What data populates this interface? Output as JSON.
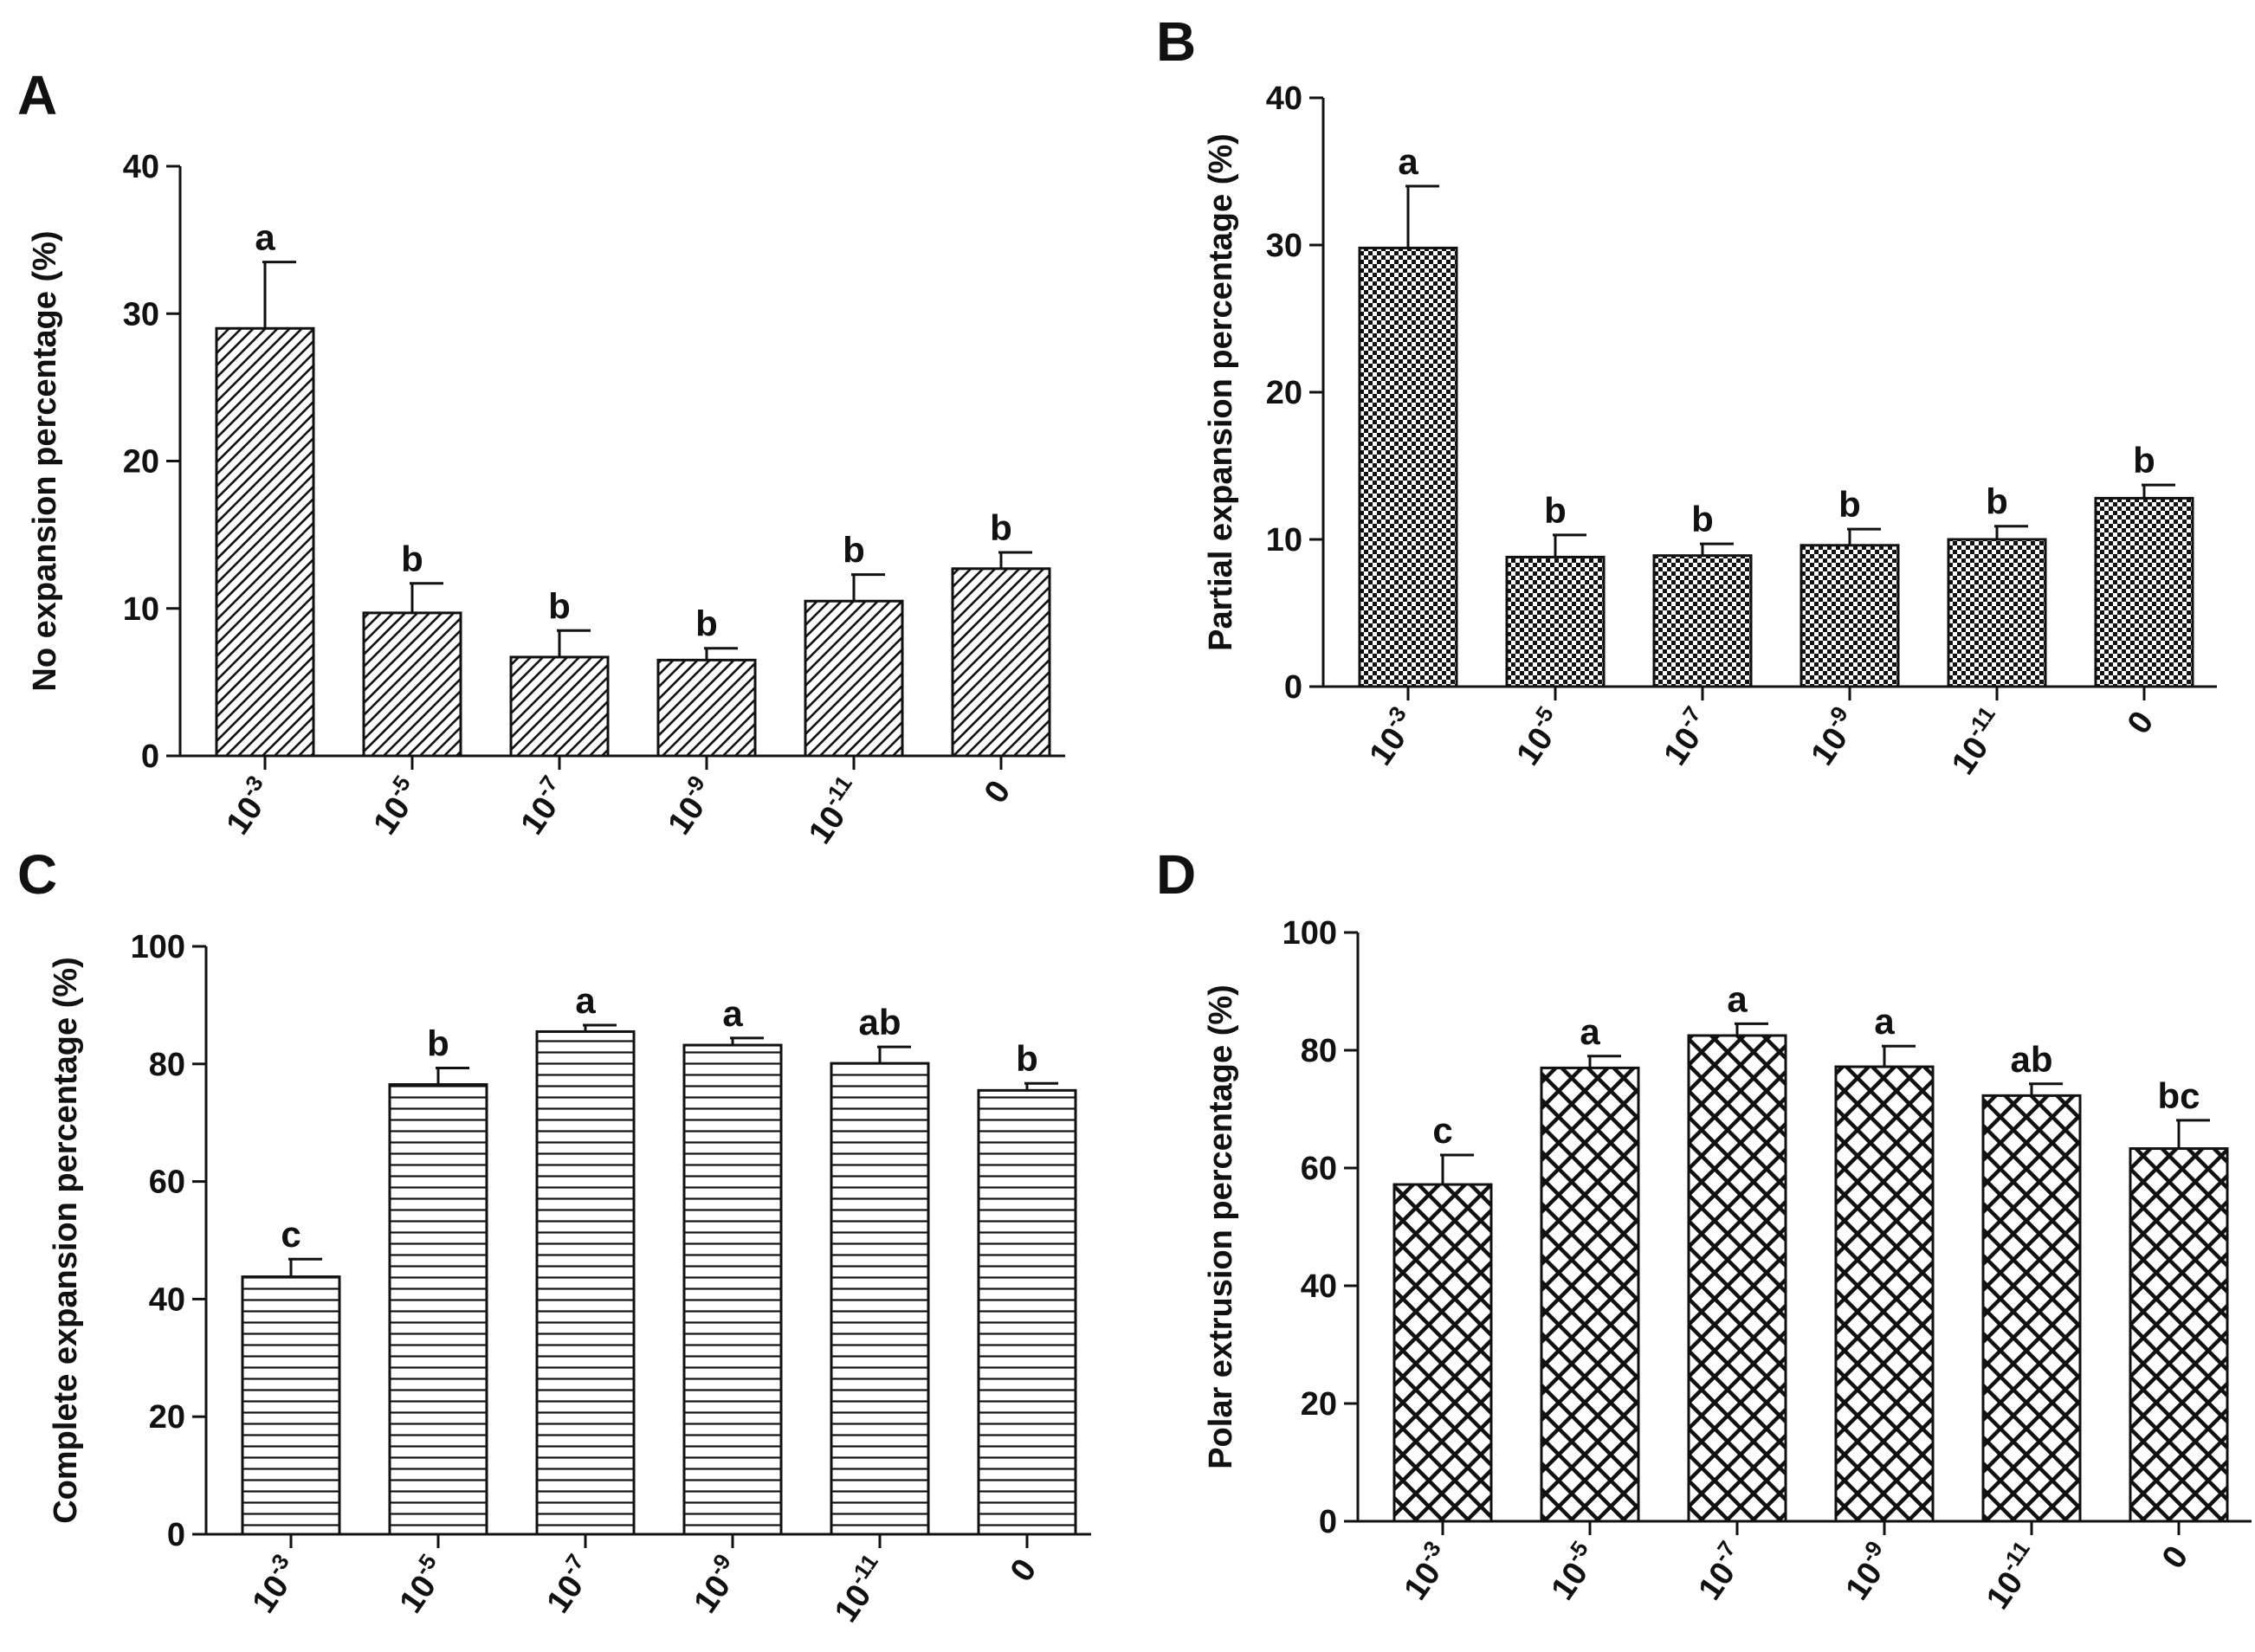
{
  "chart_data": [
    {
      "panel": "A",
      "type": "bar",
      "ylabel": "No expansion percentage (%)",
      "ylim": [
        0,
        40
      ],
      "yticks": [
        0,
        10,
        20,
        30,
        40
      ],
      "categories": [
        {
          "base": "10",
          "exp": "-3"
        },
        {
          "base": "10",
          "exp": "-5"
        },
        {
          "base": "10",
          "exp": "-7"
        },
        {
          "base": "10",
          "exp": "-9"
        },
        {
          "base": "10",
          "exp": "-11"
        },
        {
          "base": "0",
          "exp": ""
        }
      ],
      "values": [
        29.0,
        9.7,
        6.7,
        6.5,
        10.5,
        12.7
      ],
      "errors": [
        4.5,
        2.0,
        1.8,
        0.8,
        1.8,
        1.1
      ],
      "significance": [
        "a",
        "b",
        "b",
        "b",
        "b",
        "b"
      ],
      "pattern": "diagonal"
    },
    {
      "panel": "B",
      "type": "bar",
      "ylabel": "Partial expansion percentage (%)",
      "ylim": [
        0,
        40
      ],
      "yticks": [
        0,
        10,
        20,
        30,
        40
      ],
      "categories": [
        {
          "base": "10",
          "exp": "-3"
        },
        {
          "base": "10",
          "exp": "-5"
        },
        {
          "base": "10",
          "exp": "-7"
        },
        {
          "base": "10",
          "exp": "-9"
        },
        {
          "base": "10",
          "exp": "-11"
        },
        {
          "base": "0",
          "exp": ""
        }
      ],
      "values": [
        29.8,
        8.8,
        8.9,
        9.6,
        10.0,
        12.8
      ],
      "errors": [
        4.2,
        1.5,
        0.8,
        1.1,
        0.9,
        0.9
      ],
      "significance": [
        "a",
        "b",
        "b",
        "b",
        "b",
        "b"
      ],
      "pattern": "checker"
    },
    {
      "panel": "C",
      "type": "bar",
      "ylabel": "Complete expansion percentage (%)",
      "ylim": [
        0,
        100
      ],
      "yticks": [
        0,
        20,
        40,
        60,
        80,
        100
      ],
      "categories": [
        {
          "base": "10",
          "exp": "-3"
        },
        {
          "base": "10",
          "exp": "-5"
        },
        {
          "base": "10",
          "exp": "-7"
        },
        {
          "base": "10",
          "exp": "-9"
        },
        {
          "base": "10",
          "exp": "-11"
        },
        {
          "base": "0",
          "exp": ""
        }
      ],
      "values": [
        43.8,
        76.5,
        85.5,
        83.2,
        80.1,
        75.5
      ],
      "errors": [
        3.0,
        2.8,
        1.1,
        1.2,
        2.8,
        1.2
      ],
      "significance": [
        "c",
        "b",
        "a",
        "a",
        "ab",
        "b"
      ],
      "pattern": "horizontal"
    },
    {
      "panel": "D",
      "type": "bar",
      "ylabel": "Polar extrusion percentage (%)",
      "ylim": [
        0,
        100
      ],
      "yticks": [
        0,
        20,
        40,
        60,
        80,
        100
      ],
      "categories": [
        {
          "base": "10",
          "exp": "-3"
        },
        {
          "base": "10",
          "exp": "-5"
        },
        {
          "base": "10",
          "exp": "-7"
        },
        {
          "base": "10",
          "exp": "-9"
        },
        {
          "base": "10",
          "exp": "-11"
        },
        {
          "base": "0",
          "exp": ""
        }
      ],
      "values": [
        57.2,
        77.0,
        82.5,
        77.2,
        72.3,
        63.3
      ],
      "errors": [
        5.0,
        2.0,
        2.0,
        3.5,
        2.0,
        4.8
      ],
      "significance": [
        "c",
        "a",
        "a",
        "a",
        "ab",
        "bc"
      ],
      "pattern": "crosshatch"
    }
  ]
}
